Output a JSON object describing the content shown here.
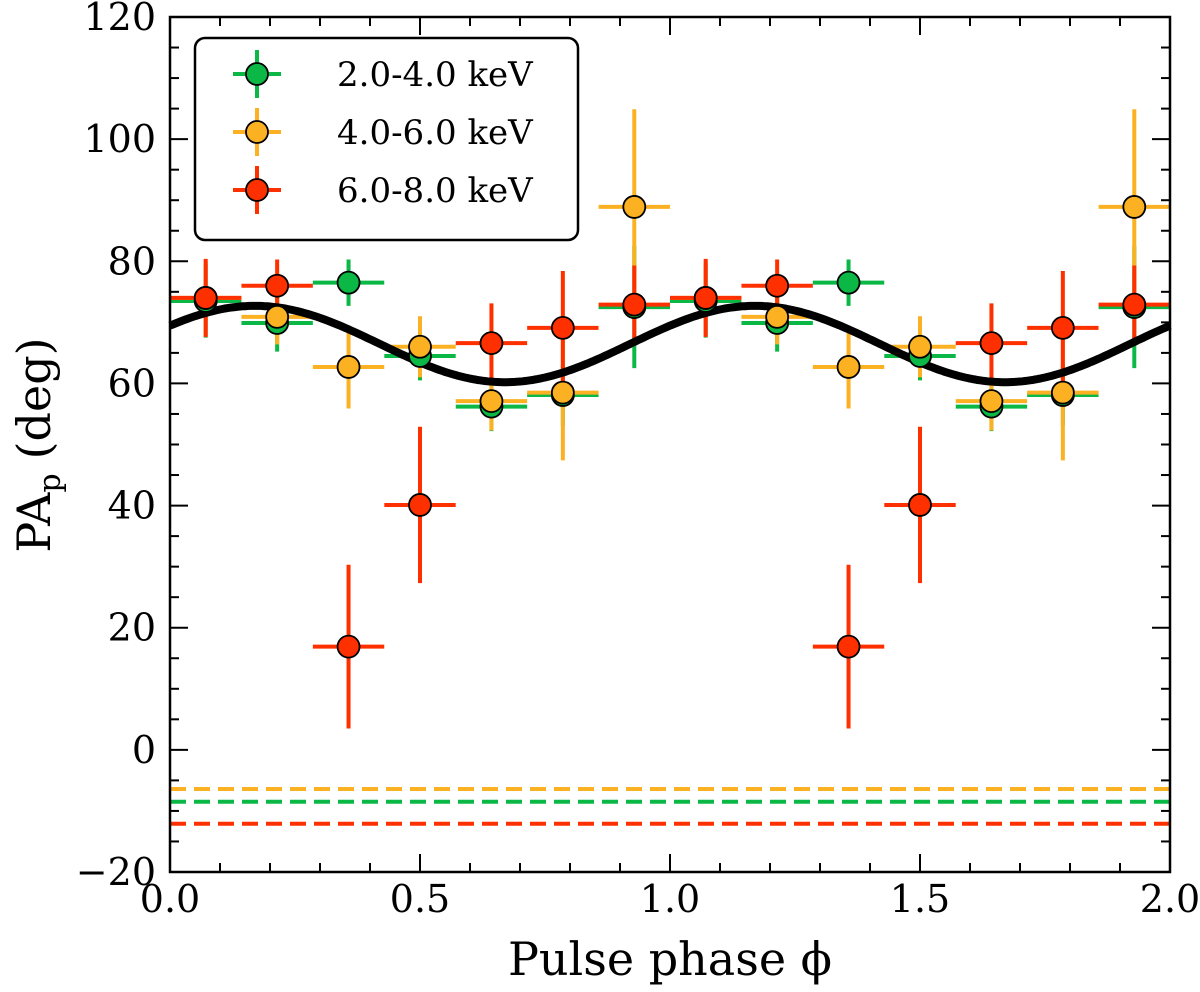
{
  "chart_data": {
    "type": "scatter",
    "xlabel": "Pulse phase ϕ",
    "ylabel_main": "PA",
    "ylabel_sub": "p",
    "ylabel_unit": "(deg)",
    "xlim": [
      0.0,
      2.0
    ],
    "ylim": [
      -20,
      120
    ],
    "xticks": [
      "0.0",
      "0.5",
      "1.0",
      "1.5",
      "2.0"
    ],
    "yticks": [
      "−20",
      "0",
      "20",
      "40",
      "60",
      "80",
      "100",
      "120"
    ],
    "grid": false,
    "legend_position": "top-left",
    "x": [
      0.0714,
      0.2143,
      0.3571,
      0.5,
      0.6429,
      0.7857,
      0.9286,
      1.0714,
      1.2143,
      1.3571,
      1.5,
      1.6429,
      1.7857,
      1.9286
    ],
    "x_halfwidth": 0.0714,
    "series": [
      {
        "name": "2.0-4.0 keV",
        "color": "#0bb845",
        "y": [
          73.5,
          69.9,
          76.5,
          64.5,
          56.2,
          58.1,
          72.5,
          73.5,
          69.9,
          76.5,
          64.5,
          56.2,
          58.1,
          72.5
        ],
        "yerr": [
          6.0,
          4.7,
          3.8,
          4.0,
          4.0,
          5.0,
          10.0,
          6.0,
          4.7,
          3.8,
          4.0,
          4.0,
          5.0,
          10.0
        ],
        "dashed_level": -8.5
      },
      {
        "name": "4.0-6.0 keV",
        "color": "#fbb122",
        "y": [
          74.0,
          70.9,
          62.7,
          66.0,
          57.1,
          58.5,
          88.9,
          74.0,
          70.9,
          62.7,
          66.0,
          57.1,
          58.5,
          88.9
        ],
        "yerr": [
          6.0,
          4.5,
          6.8,
          5.0,
          4.8,
          11.1,
          16.0,
          6.0,
          4.5,
          6.8,
          5.0,
          4.8,
          11.1,
          16.0
        ],
        "dashed_level": -6.4
      },
      {
        "name": "6.0-8.0 keV",
        "color": "#ff3000",
        "y": [
          74.0,
          76.0,
          16.9,
          40.1,
          66.6,
          69.1,
          72.9,
          74.0,
          76.0,
          16.9,
          40.1,
          66.6,
          69.1,
          72.9
        ],
        "yerr": [
          6.4,
          4.3,
          13.4,
          12.8,
          6.5,
          9.3,
          6.4,
          6.4,
          4.3,
          13.4,
          12.8,
          6.5,
          9.3,
          6.4
        ],
        "dashed_level": -12.1
      }
    ],
    "model_curve": {
      "type": "sinusoid",
      "mean": 66.45,
      "amplitude": 6.25,
      "period": 1.0,
      "peak_phase": 0.17,
      "color": "#000000"
    }
  }
}
